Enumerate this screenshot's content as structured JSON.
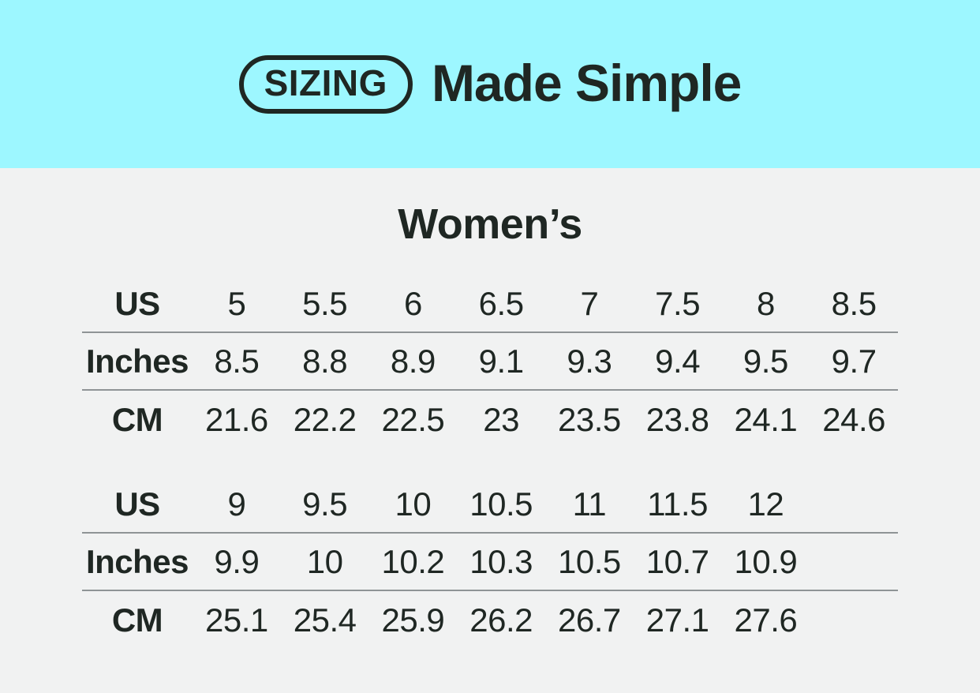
{
  "page": {
    "background_color": "#F1F2F2",
    "accent_color": "#9DF7FF",
    "text_color": "#1F2723",
    "divider_color": "#8F9496"
  },
  "header": {
    "badge_label": "SIZING",
    "title": "Made Simple"
  },
  "section": {
    "title": "Women’s"
  },
  "chart_data": {
    "type": "table",
    "title": "SIZING Made Simple",
    "subtitle": "Women’s",
    "row_labels": [
      "US",
      "Inches",
      "CM"
    ],
    "tables": [
      {
        "rows": [
          {
            "label": "US",
            "values": [
              "5",
              "5.5",
              "6",
              "6.5",
              "7",
              "7.5",
              "8",
              "8.5"
            ]
          },
          {
            "label": "Inches",
            "values": [
              "8.5",
              "8.8",
              "8.9",
              "9.1",
              "9.3",
              "9.4",
              "9.5",
              "9.7"
            ]
          },
          {
            "label": "CM",
            "values": [
              "21.6",
              "22.2",
              "22.5",
              "23",
              "23.5",
              "23.8",
              "24.1",
              "24.6"
            ]
          }
        ]
      },
      {
        "rows": [
          {
            "label": "US",
            "values": [
              "9",
              "9.5",
              "10",
              "10.5",
              "11",
              "11.5",
              "12"
            ]
          },
          {
            "label": "Inches",
            "values": [
              "9.9",
              "10",
              "10.2",
              "10.3",
              "10.5",
              "10.7",
              "10.9"
            ]
          },
          {
            "label": "CM",
            "values": [
              "25.1",
              "25.4",
              "25.9",
              "26.2",
              "26.7",
              "27.1",
              "27.6"
            ]
          }
        ]
      }
    ]
  }
}
